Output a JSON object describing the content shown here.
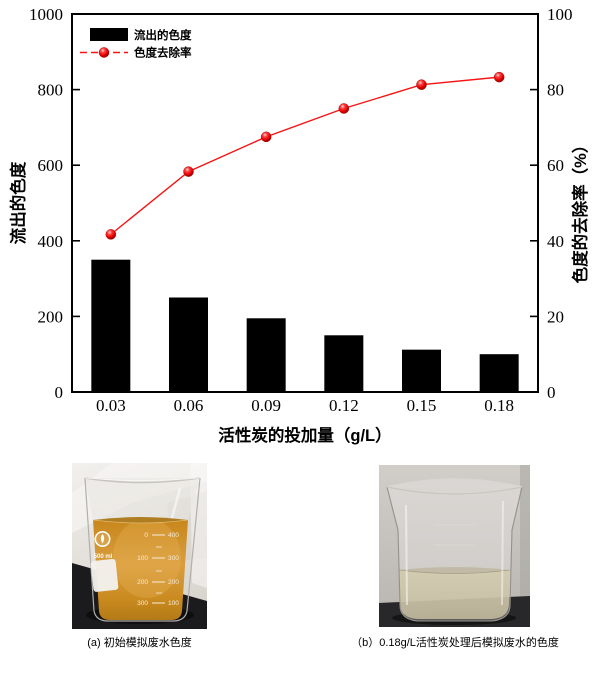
{
  "chart_data": {
    "type": "bar+line",
    "categories": [
      "0.03",
      "0.06",
      "0.09",
      "0.12",
      "0.15",
      "0.18"
    ],
    "series": [
      {
        "name": "流出的色度",
        "type": "bar",
        "axis": "left",
        "values": [
          350,
          250,
          195,
          150,
          112,
          100
        ],
        "color": "#000000"
      },
      {
        "name": "色度去除率",
        "type": "line",
        "axis": "right",
        "values": [
          41.7,
          58.3,
          67.5,
          75.0,
          81.3,
          83.3
        ],
        "color": "#f51515"
      }
    ],
    "left_axis": {
      "label": "流出的色度",
      "min": 0,
      "max": 1000,
      "ticks": [
        0,
        200,
        400,
        600,
        800,
        1000
      ]
    },
    "right_axis": {
      "label": "色度的去除率（%）",
      "min": 0,
      "max": 100,
      "ticks": [
        0,
        20,
        40,
        60,
        80,
        100
      ]
    },
    "x_axis": {
      "label": "活性炭的投加量（g/L）"
    },
    "legend": {
      "position": "top-left",
      "entries": [
        "流出的色度",
        "色度去除率"
      ]
    },
    "grid": false
  },
  "colors": {
    "bar": "#000000",
    "line": "#f51515",
    "marker": "#e60000"
  },
  "photos": [
    {
      "caption": "(a) 初始模拟废水色度",
      "beaker_label": "500 ml",
      "scale_rows": [
        {
          "left": "0",
          "right": "400"
        },
        {
          "left": "100",
          "right": "300"
        },
        {
          "left": "200",
          "right": "200"
        },
        {
          "left": "300",
          "right": "100"
        }
      ]
    },
    {
      "caption": "（b）0.18g/L活性炭处理后模拟废水的色度"
    }
  ]
}
